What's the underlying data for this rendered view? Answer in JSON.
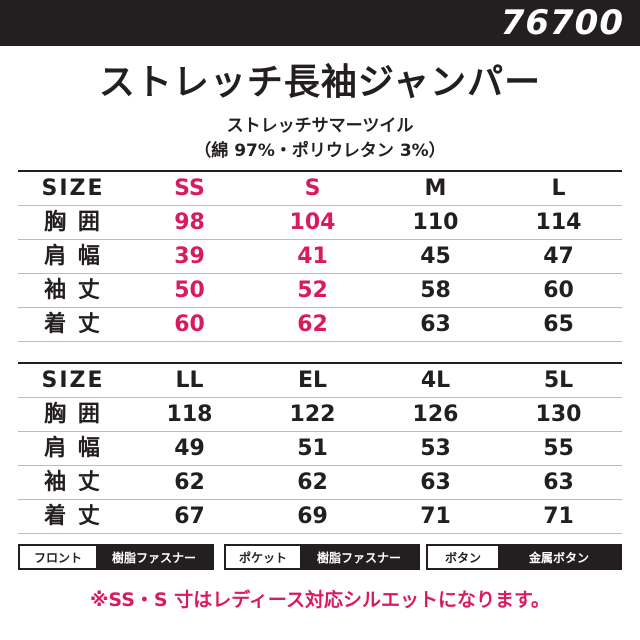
{
  "model_number": "76700",
  "title": "ストレッチ長袖ジャンパー",
  "fabric": "ストレッチサマーツイル",
  "composition": "（綿 97%・ポリウレタン 3%）",
  "table1": {
    "header": [
      "SIZE",
      "SS",
      "S",
      "M",
      "L"
    ],
    "rows": [
      {
        "label": "胸 囲",
        "values": [
          "98",
          "104",
          "110",
          "114"
        ]
      },
      {
        "label": "肩 幅",
        "values": [
          "39",
          "41",
          "45",
          "47"
        ]
      },
      {
        "label": "袖 丈",
        "values": [
          "50",
          "52",
          "58",
          "60"
        ]
      },
      {
        "label": "着 丈",
        "values": [
          "60",
          "62",
          "63",
          "65"
        ]
      }
    ]
  },
  "table2": {
    "header": [
      "SIZE",
      "LL",
      "EL",
      "4L",
      "5L"
    ],
    "rows": [
      {
        "label": "胸 囲",
        "values": [
          "118",
          "122",
          "126",
          "130"
        ]
      },
      {
        "label": "肩 幅",
        "values": [
          "49",
          "51",
          "53",
          "55"
        ]
      },
      {
        "label": "袖 丈",
        "values": [
          "62",
          "62",
          "63",
          "63"
        ]
      },
      {
        "label": "着 丈",
        "values": [
          "67",
          "69",
          "71",
          "71"
        ]
      }
    ]
  },
  "badges": [
    {
      "label": "フロント",
      "value": "樹脂ファスナー"
    },
    {
      "label": "ポケット",
      "value": "樹脂ファスナー"
    },
    {
      "label": "ボタン",
      "value": "金属ボタン"
    }
  ],
  "note": "※SS・S 寸はレディース対応シルエットになります。",
  "colors": {
    "accent": "#d81b60",
    "dark": "#231f20",
    "background": "#ffffff"
  }
}
